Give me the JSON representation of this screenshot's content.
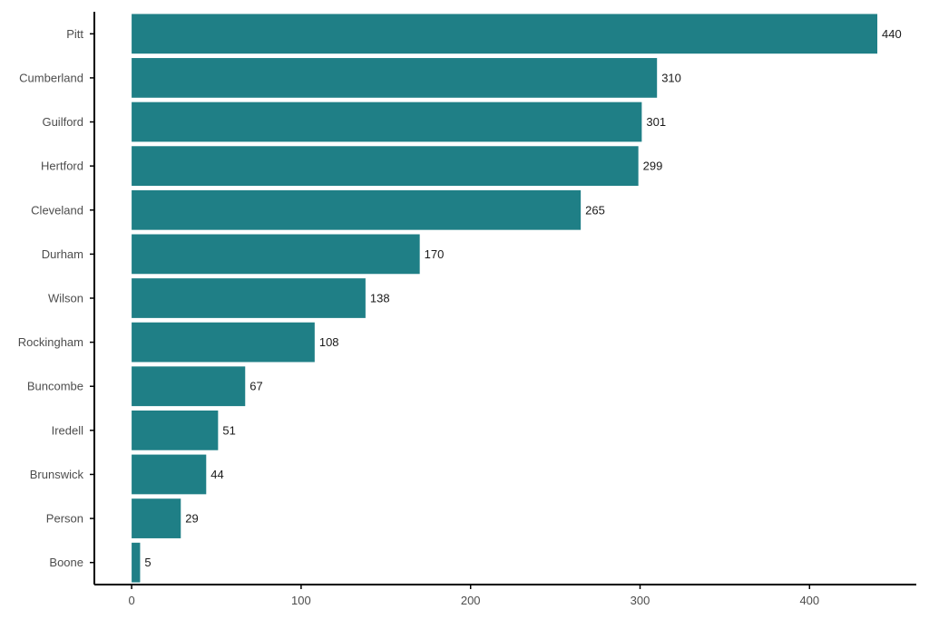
{
  "chart_data": {
    "type": "bar",
    "orientation": "horizontal",
    "categories": [
      "Pitt",
      "Cumberland",
      "Guilford",
      "Hertford",
      "Cleveland",
      "Durham",
      "Wilson",
      "Rockingham",
      "Buncombe",
      "Iredell",
      "Brunswick",
      "Person",
      "Boone"
    ],
    "values": [
      440,
      310,
      301,
      299,
      265,
      170,
      138,
      108,
      67,
      51,
      44,
      29,
      5
    ],
    "data_labels": [
      "440",
      "310",
      "301",
      "299",
      "265",
      "170",
      "138",
      "108",
      "67",
      "51",
      "44",
      "29",
      "5"
    ],
    "x_ticks": [
      0,
      100,
      200,
      300,
      400
    ],
    "x_tick_labels": [
      "0",
      "100",
      "200",
      "300",
      "400"
    ],
    "xlim": [
      -22,
      463
    ],
    "title": "",
    "xlabel": "",
    "ylabel": "",
    "grid": false,
    "legend": "none",
    "bar_color": "#1f7f86",
    "axis_color": "#000000"
  }
}
